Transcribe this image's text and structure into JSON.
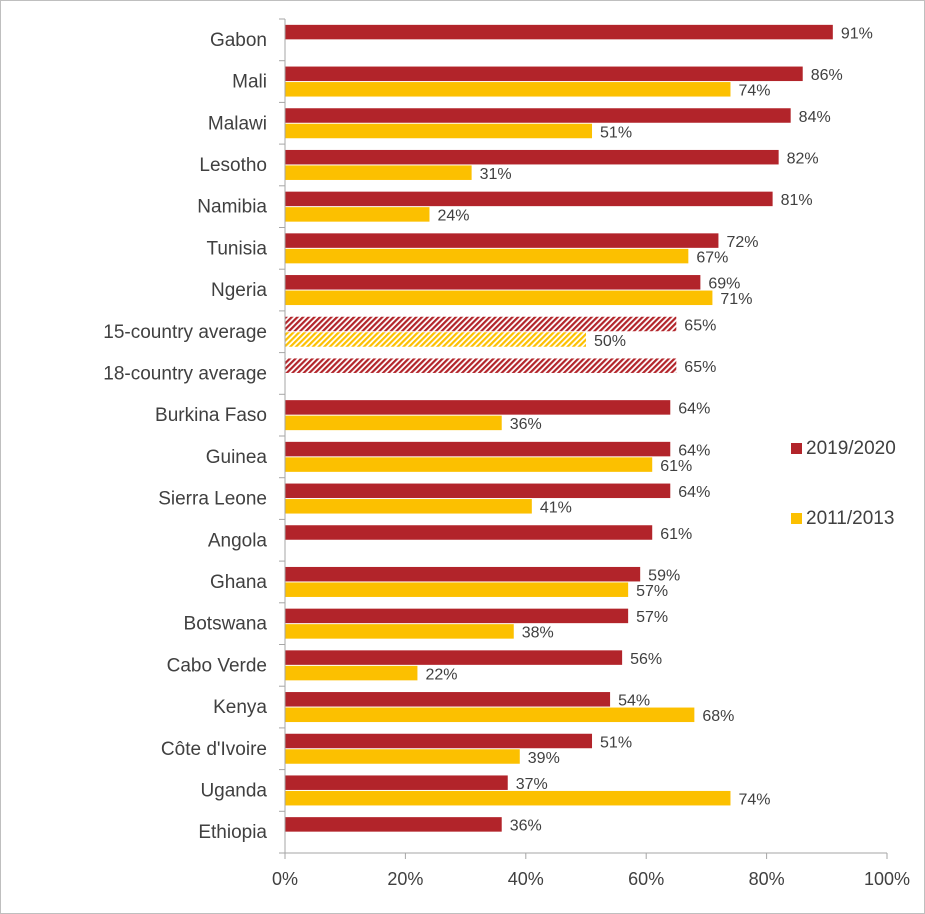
{
  "chart_data": {
    "type": "bar",
    "orientation": "horizontal",
    "categories": [
      "Gabon",
      "Mali",
      "Malawi",
      "Lesotho",
      "Namibia",
      "Tunisia",
      "Ngeria",
      "15-country average",
      "18-country average",
      "Burkina Faso",
      "Guinea",
      "Sierra Leone",
      "Angola",
      "Ghana",
      "Botswana",
      "Cabo Verde",
      "Kenya",
      "Côte d'Ivoire",
      "Uganda",
      "Ethiopia"
    ],
    "series": [
      {
        "name": "2019/2020",
        "color": "#b2242a",
        "values": [
          91,
          86,
          84,
          82,
          81,
          72,
          69,
          65,
          65,
          64,
          64,
          64,
          61,
          59,
          57,
          56,
          54,
          51,
          37,
          36
        ],
        "labels": [
          "91%",
          "86%",
          "84%",
          "82%",
          "81%",
          "72%",
          "69%",
          "65%",
          "65%",
          "64%",
          "64%",
          "64%",
          "61%",
          "59%",
          "57%",
          "56%",
          "54%",
          "51%",
          "37%",
          "36%"
        ]
      },
      {
        "name": "2011/2013",
        "color": "#fcc000",
        "values": [
          null,
          74,
          51,
          31,
          24,
          67,
          71,
          50,
          null,
          36,
          61,
          41,
          null,
          57,
          38,
          22,
          68,
          39,
          74,
          null
        ],
        "labels": [
          "",
          "74%",
          "51%",
          "31%",
          "24%",
          "67%",
          "71%",
          "50%",
          "",
          "36%",
          "61%",
          "41%",
          "",
          "57%",
          "38%",
          "22%",
          "68%",
          "39%",
          "74%",
          ""
        ]
      }
    ],
    "hatched_categories": [
      "15-country average",
      "18-country average"
    ],
    "xlim": [
      0,
      100
    ],
    "xticks": [
      0,
      20,
      40,
      60,
      80,
      100
    ],
    "xtick_labels": [
      "0%",
      "20%",
      "40%",
      "60%",
      "80%",
      "100%"
    ],
    "grid": false,
    "legend_position": "right",
    "title": "",
    "xlabel": "",
    "ylabel": ""
  }
}
